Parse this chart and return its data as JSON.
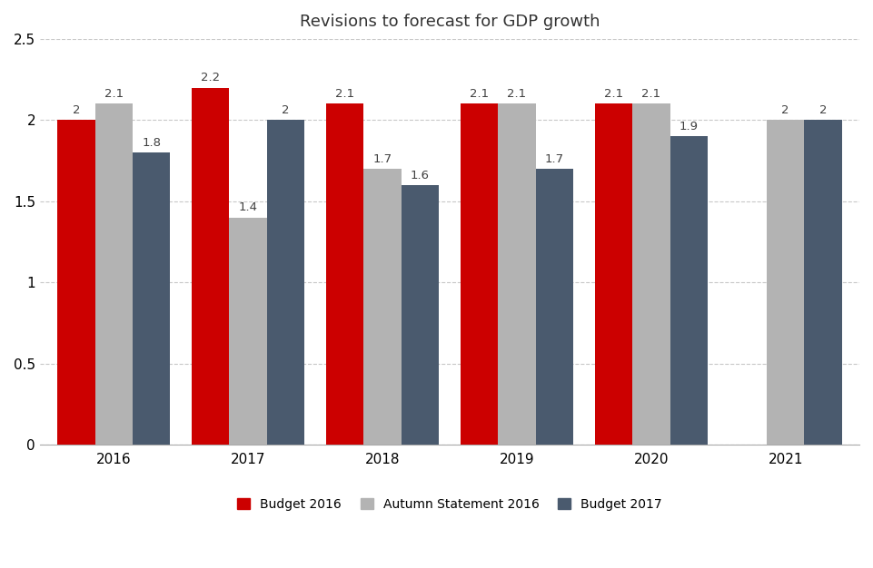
{
  "title": "Revisions to forecast for GDP growth",
  "categories": [
    "2016",
    "2017",
    "2018",
    "2019",
    "2020",
    "2021"
  ],
  "series": {
    "Budget 2016": [
      2.0,
      2.2,
      2.1,
      2.1,
      2.1,
      null
    ],
    "Autumn Statement 2016": [
      2.1,
      1.4,
      1.7,
      2.1,
      2.1,
      2.0
    ],
    "Budget 2017": [
      1.8,
      2.0,
      1.6,
      1.7,
      1.9,
      2.0
    ]
  },
  "colors": {
    "Budget 2016": "#cc0000",
    "Autumn Statement 2016": "#b3b3b3",
    "Budget 2017": "#4a5a6e"
  },
  "ylim": [
    0,
    2.5
  ],
  "yticks": [
    0,
    0.5,
    1.0,
    1.5,
    2.0,
    2.5
  ],
  "bar_width": 0.28,
  "label_fontsize": 9.5,
  "title_fontsize": 13,
  "tick_fontsize": 11,
  "legend_fontsize": 10,
  "background_color": "#ffffff",
  "grid_color": "#c8c8c8"
}
